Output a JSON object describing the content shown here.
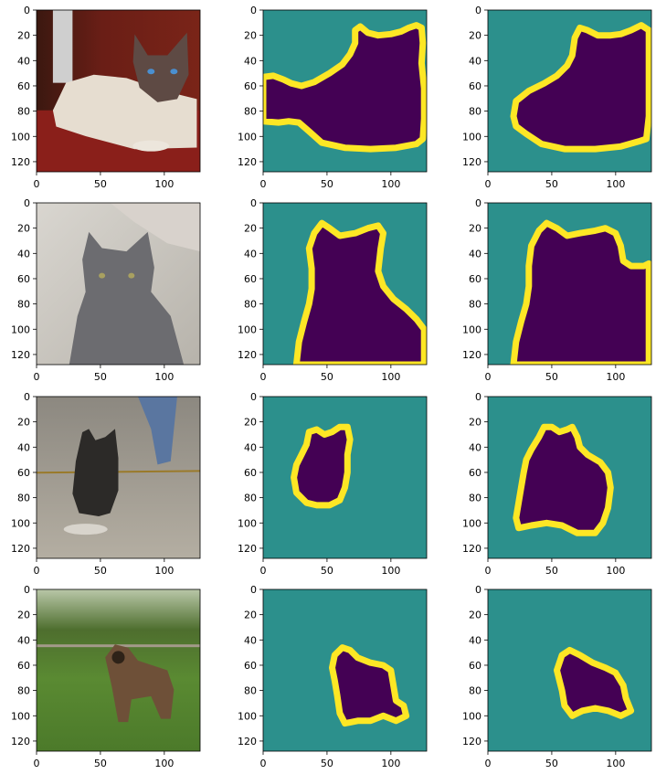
{
  "chart_data": {
    "type": "image-grid",
    "layout": {
      "rows": 4,
      "cols": 3
    },
    "axes": {
      "xlim": [
        0,
        128
      ],
      "ylim": [
        128,
        0
      ],
      "xticks": [
        0,
        50,
        100
      ],
      "yticks": [
        0,
        20,
        40,
        60,
        80,
        100,
        120
      ],
      "grid": false
    },
    "colors": {
      "background": "#2c908c",
      "inside": "#440154",
      "border": "#fde725"
    },
    "rows": [
      {
        "photo": "siamese-cat-on-red-blanket",
        "masks": [
          [
            [
              0,
              53
            ],
            [
              8,
              52
            ],
            [
              16,
              55
            ],
            [
              22,
              58
            ],
            [
              30,
              60
            ],
            [
              40,
              57
            ],
            [
              52,
              50
            ],
            [
              62,
              43
            ],
            [
              68,
              35
            ],
            [
              72,
              26
            ],
            [
              72,
              16
            ],
            [
              76,
              13
            ],
            [
              82,
              18
            ],
            [
              90,
              20
            ],
            [
              100,
              19
            ],
            [
              108,
              17
            ],
            [
              114,
              14
            ],
            [
              120,
              12
            ],
            [
              124,
              14
            ],
            [
              125,
              26
            ],
            [
              124,
              42
            ],
            [
              126,
              62
            ],
            [
              126,
              86
            ],
            [
              125,
              102
            ],
            [
              120,
              106
            ],
            [
              104,
              109
            ],
            [
              84,
              110
            ],
            [
              64,
              109
            ],
            [
              46,
              105
            ],
            [
              36,
              96
            ],
            [
              28,
              89
            ],
            [
              20,
              88
            ],
            [
              12,
              89
            ],
            [
              0,
              88
            ]
          ],
          [
            [
              20,
              84
            ],
            [
              22,
              72
            ],
            [
              32,
              64
            ],
            [
              44,
              58
            ],
            [
              54,
              52
            ],
            [
              62,
              44
            ],
            [
              66,
              36
            ],
            [
              68,
              22
            ],
            [
              72,
              14
            ],
            [
              78,
              16
            ],
            [
              86,
              20
            ],
            [
              96,
              20
            ],
            [
              104,
              19
            ],
            [
              112,
              16
            ],
            [
              120,
              12
            ],
            [
              126,
              16
            ],
            [
              126,
              56
            ],
            [
              126,
              84
            ],
            [
              124,
              102
            ],
            [
              118,
              104
            ],
            [
              104,
              108
            ],
            [
              84,
              110
            ],
            [
              60,
              110
            ],
            [
              42,
              106
            ],
            [
              30,
              98
            ],
            [
              22,
              92
            ]
          ]
        ]
      },
      {
        "photo": "gray-kitten-on-newspaper",
        "masks": [
          [
            [
              26,
              128
            ],
            [
              28,
              110
            ],
            [
              32,
              94
            ],
            [
              36,
              80
            ],
            [
              38,
              68
            ],
            [
              38,
              52
            ],
            [
              36,
              36
            ],
            [
              40,
              24
            ],
            [
              46,
              16
            ],
            [
              52,
              20
            ],
            [
              60,
              26
            ],
            [
              72,
              24
            ],
            [
              82,
              20
            ],
            [
              90,
              18
            ],
            [
              94,
              24
            ],
            [
              92,
              36
            ],
            [
              90,
              54
            ],
            [
              94,
              66
            ],
            [
              102,
              76
            ],
            [
              112,
              84
            ],
            [
              120,
              92
            ],
            [
              126,
              100
            ],
            [
              126,
              128
            ]
          ],
          [
            [
              20,
              128
            ],
            [
              22,
              110
            ],
            [
              26,
              94
            ],
            [
              30,
              80
            ],
            [
              32,
              66
            ],
            [
              32,
              50
            ],
            [
              34,
              34
            ],
            [
              40,
              22
            ],
            [
              46,
              16
            ],
            [
              54,
              20
            ],
            [
              62,
              26
            ],
            [
              72,
              24
            ],
            [
              84,
              22
            ],
            [
              92,
              20
            ],
            [
              100,
              24
            ],
            [
              104,
              34
            ],
            [
              106,
              46
            ],
            [
              112,
              50
            ],
            [
              122,
              50
            ],
            [
              126,
              48
            ],
            [
              126,
              128
            ]
          ]
        ]
      },
      {
        "photo": "black-terrier-running-on-wet-pavement",
        "masks": [
          [
            [
              26,
              76
            ],
            [
              24,
              64
            ],
            [
              26,
              54
            ],
            [
              30,
              46
            ],
            [
              34,
              38
            ],
            [
              36,
              28
            ],
            [
              42,
              26
            ],
            [
              48,
              30
            ],
            [
              54,
              28
            ],
            [
              60,
              24
            ],
            [
              66,
              24
            ],
            [
              68,
              34
            ],
            [
              66,
              46
            ],
            [
              66,
              60
            ],
            [
              64,
              72
            ],
            [
              60,
              82
            ],
            [
              52,
              86
            ],
            [
              42,
              86
            ],
            [
              34,
              84
            ]
          ],
          [
            [
              22,
              96
            ],
            [
              24,
              84
            ],
            [
              26,
              72
            ],
            [
              28,
              60
            ],
            [
              30,
              50
            ],
            [
              34,
              42
            ],
            [
              40,
              32
            ],
            [
              44,
              24
            ],
            [
              50,
              24
            ],
            [
              56,
              28
            ],
            [
              62,
              26
            ],
            [
              66,
              24
            ],
            [
              70,
              32
            ],
            [
              72,
              40
            ],
            [
              78,
              46
            ],
            [
              88,
              52
            ],
            [
              94,
              60
            ],
            [
              96,
              72
            ],
            [
              94,
              88
            ],
            [
              90,
              100
            ],
            [
              84,
              108
            ],
            [
              70,
              108
            ],
            [
              58,
              102
            ],
            [
              46,
              100
            ],
            [
              34,
              102
            ],
            [
              24,
              104
            ]
          ]
        ]
      },
      {
        "photo": "leonberger-dog-on-grass",
        "masks": [
          [
            [
              54,
              62
            ],
            [
              56,
              52
            ],
            [
              62,
              46
            ],
            [
              68,
              48
            ],
            [
              74,
              54
            ],
            [
              84,
              58
            ],
            [
              94,
              60
            ],
            [
              100,
              64
            ],
            [
              102,
              76
            ],
            [
              104,
              88
            ],
            [
              110,
              92
            ],
            [
              112,
              100
            ],
            [
              104,
              104
            ],
            [
              94,
              100
            ],
            [
              84,
              104
            ],
            [
              74,
              104
            ],
            [
              64,
              106
            ],
            [
              60,
              98
            ],
            [
              58,
              84
            ],
            [
              56,
              72
            ]
          ],
          [
            [
              54,
              64
            ],
            [
              58,
              52
            ],
            [
              64,
              48
            ],
            [
              72,
              52
            ],
            [
              82,
              58
            ],
            [
              92,
              62
            ],
            [
              100,
              66
            ],
            [
              106,
              76
            ],
            [
              108,
              86
            ],
            [
              112,
              96
            ],
            [
              104,
              100
            ],
            [
              94,
              96
            ],
            [
              84,
              94
            ],
            [
              74,
              96
            ],
            [
              66,
              100
            ],
            [
              60,
              92
            ],
            [
              58,
              80
            ],
            [
              56,
              72
            ]
          ]
        ]
      }
    ]
  }
}
